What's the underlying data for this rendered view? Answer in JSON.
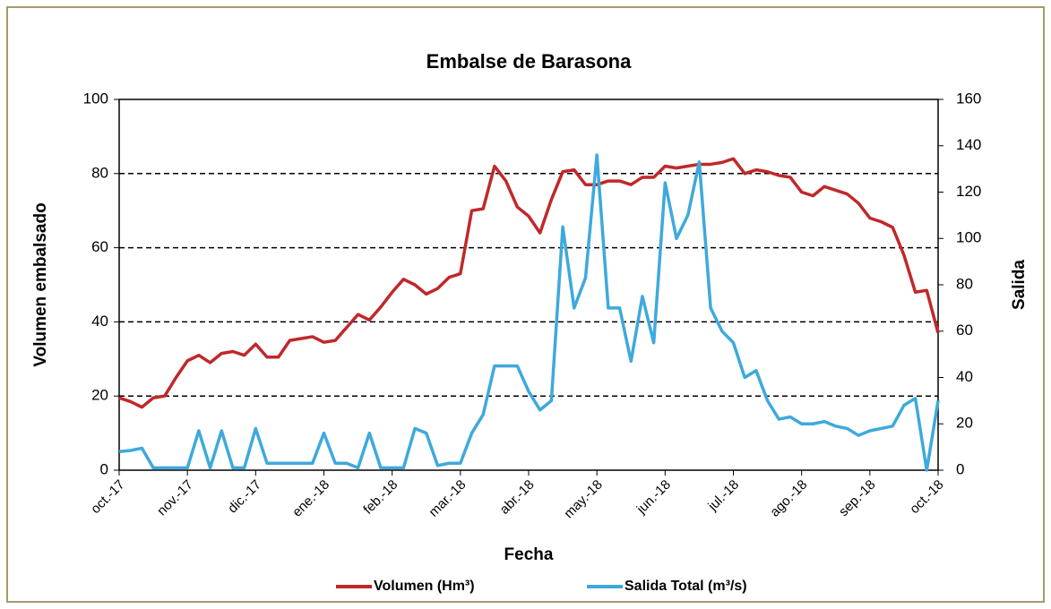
{
  "chart_data": {
    "type": "line",
    "title": "Embalse de Barasona",
    "x_label": "Fecha",
    "y_label": "Volumen embalsado",
    "y2_label": "Salida",
    "categories": [
      "oct.-17",
      null,
      null,
      null,
      null,
      null,
      "nov.-17",
      null,
      null,
      null,
      null,
      null,
      "dic.-17",
      null,
      null,
      null,
      null,
      null,
      "ene.-18",
      null,
      null,
      null,
      null,
      null,
      "feb.-18",
      null,
      null,
      null,
      null,
      null,
      "mar.-18",
      null,
      null,
      null,
      null,
      null,
      "abr.-18",
      null,
      null,
      null,
      null,
      null,
      "may.-18",
      null,
      null,
      null,
      null,
      null,
      "jun.-18",
      null,
      null,
      null,
      null,
      null,
      "jul.-18",
      null,
      null,
      null,
      null,
      null,
      "ago.-18",
      null,
      null,
      null,
      null,
      null,
      "sep.-18",
      null,
      null,
      null,
      null,
      null,
      "oct.-18"
    ],
    "series": [
      {
        "name": "Volumen (Hm³)",
        "color": "#c0282a",
        "axis": "y",
        "values": [
          19.5,
          18.5,
          17,
          19.5,
          20,
          25,
          29.5,
          31,
          29,
          31.5,
          32,
          31,
          34,
          30.5,
          30.5,
          35,
          35.5,
          36,
          34.5,
          35,
          38.5,
          42,
          40.5,
          44,
          48,
          51.5,
          50,
          47.5,
          49,
          52,
          53,
          70,
          70.5,
          82,
          78,
          71,
          68.5,
          64,
          73,
          80.5,
          81,
          77,
          77,
          78,
          78,
          77,
          79,
          79,
          82,
          81.5,
          82,
          82.5,
          82.5,
          83,
          84,
          80,
          81,
          80.5,
          79.5,
          79,
          75,
          74,
          76.5,
          75.5,
          74.5,
          72,
          68,
          67,
          65.5,
          58,
          48,
          48.5,
          37
        ]
      },
      {
        "name": "Salida Total (m³/s)",
        "color": "#3ea9dc",
        "axis": "y2",
        "values": [
          8,
          8.5,
          9.5,
          1,
          1,
          1,
          1,
          17,
          1,
          17,
          1,
          1,
          18,
          3,
          3,
          3,
          3,
          3,
          16,
          3,
          3,
          1,
          16,
          1,
          1,
          1,
          18,
          16,
          2,
          3,
          3,
          16,
          24,
          45,
          45,
          45,
          34,
          26,
          30,
          105,
          70,
          83,
          136,
          70,
          70,
          47,
          75,
          55,
          124,
          100,
          110,
          133,
          70,
          60,
          55,
          40,
          43,
          30,
          22,
          23,
          20,
          20,
          21,
          19,
          18,
          15,
          17,
          18,
          19,
          28,
          31,
          0,
          30
        ]
      }
    ],
    "ylim": [
      0,
      100
    ],
    "yticks": [
      0,
      20,
      40,
      60,
      80,
      100
    ],
    "y2lim": [
      0,
      160
    ],
    "y2ticks": [
      0,
      20,
      40,
      60,
      80,
      100,
      120,
      140,
      160
    ],
    "grid": true
  }
}
